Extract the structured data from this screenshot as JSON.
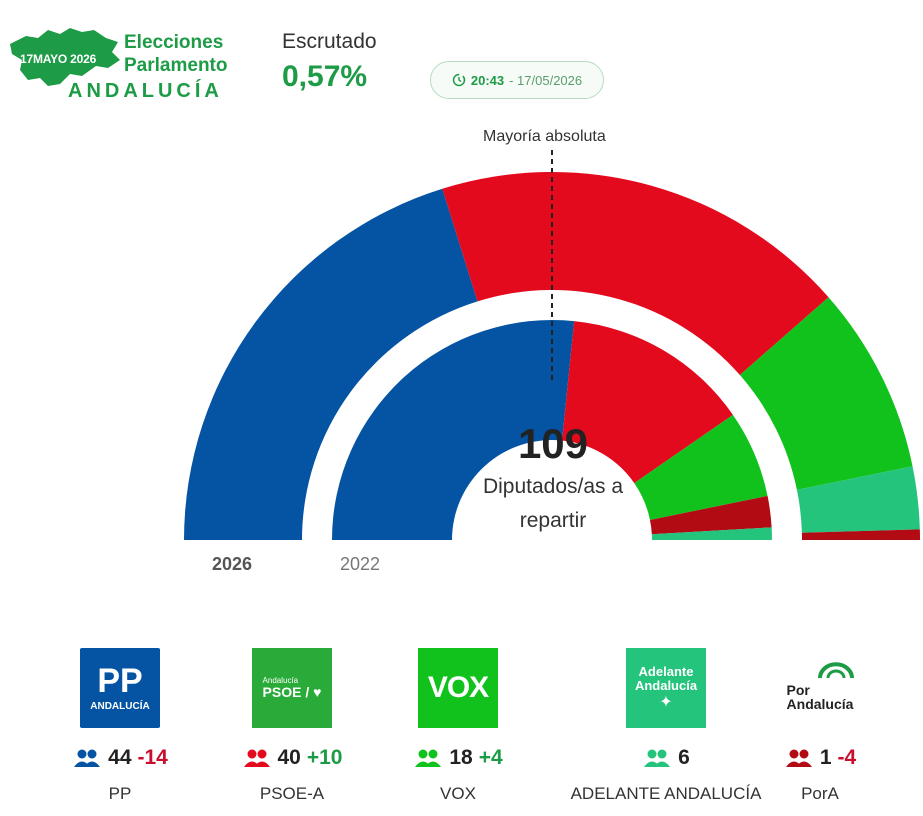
{
  "header": {
    "logo": {
      "date_text": "17MAYO 2026",
      "title_line1": "Elecciones",
      "title_line2": "Parlamento",
      "region": "ANDALUCÍA"
    },
    "escrutado_label": "Escrutado",
    "escrutado_value": "0,57%",
    "time": "20:43",
    "date": "- 17/05/2026",
    "icon": "clock-icon"
  },
  "chart_data": {
    "type": "hemicycle",
    "total_seats": 109,
    "majority_label": "Mayoría absoluta",
    "total_number": "109",
    "total_caption": "Diputados/as a repartir",
    "rings": [
      {
        "label": "2026",
        "seats": [
          {
            "party": "PP",
            "value": 44,
            "color": "#0454a3"
          },
          {
            "party": "PSOE-A",
            "value": 40,
            "color": "#e30a1e"
          },
          {
            "party": "VOX",
            "value": 18,
            "color": "#11c21d"
          },
          {
            "party": "ADELANTE ANDALUCÍA",
            "value": 6,
            "color": "#25c47d"
          },
          {
            "party": "PorA",
            "value": 1,
            "color": "#b30b14"
          }
        ]
      },
      {
        "label": "2022",
        "seats": [
          {
            "party": "PP",
            "value": 58,
            "color": "#0454a3"
          },
          {
            "party": "PSOE-A",
            "value": 30,
            "color": "#e30a1e"
          },
          {
            "party": "VOX",
            "value": 14,
            "color": "#11c21d"
          },
          {
            "party": "PorA",
            "value": 5,
            "color": "#b30b14"
          },
          {
            "party": "ADELANTE ANDALUCÍA",
            "value": 2,
            "color": "#25c47d"
          }
        ]
      }
    ]
  },
  "parties": [
    {
      "name": "PP",
      "seats": "44",
      "change": "-14",
      "change_color": "#c8102e",
      "icon_color": "#0454a3",
      "logo_bg": "#0454a3",
      "logo_text": "PP",
      "logo_sub": "ANDALUCÍA"
    },
    {
      "name": "PSOE-A",
      "seats": "40",
      "change": "+10",
      "change_color": "#1d9b46",
      "icon_color": "#e30a1e",
      "logo_bg": "#2aaa39",
      "logo_text": "PSOE / ♥",
      "logo_sub": "Andalucía"
    },
    {
      "name": "VOX",
      "seats": "18",
      "change": "+4",
      "change_color": "#1d9b46",
      "icon_color": "#11c21d",
      "logo_bg": "#11c21d",
      "logo_text": "VOX",
      "logo_sub": ""
    },
    {
      "name": "ADELANTE ANDALUCÍA",
      "seats": "6",
      "change": "",
      "change_color": "#1d9b46",
      "icon_color": "#25c47d",
      "logo_bg": "#25c47d",
      "logo_text": "Adelante",
      "logo_sub": "Andalucía"
    },
    {
      "name": "PorA",
      "seats": "1",
      "change": "-4",
      "change_color": "#c8102e",
      "icon_color": "#b30b14",
      "logo_bg": "#ffffff",
      "logo_text": "Por",
      "logo_sub": "Andalucía"
    }
  ]
}
